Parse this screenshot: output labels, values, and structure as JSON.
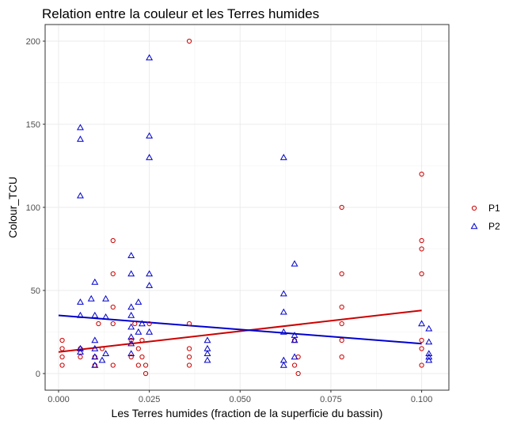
{
  "chart_data": {
    "type": "scatter",
    "title": "Relation entre la couleur et les Terres humides",
    "xlabel": "Les Terres humides (fraction de la superficie du bassin)",
    "ylabel": "Colour_TCU",
    "xlim": [
      -0.0037,
      0.1075
    ],
    "ylim": [
      -10,
      210
    ],
    "x_ticks": [
      0.0,
      0.025,
      0.05,
      0.075,
      0.1
    ],
    "x_tick_labels": [
      "0.000",
      "0.025",
      "0.050",
      "0.075",
      "0.100"
    ],
    "y_ticks": [
      0,
      50,
      100,
      150,
      200
    ],
    "y_tick_labels": [
      "0",
      "50",
      "100",
      "150",
      "200"
    ],
    "grid": true,
    "legend_position": "right",
    "series": [
      {
        "name": "P1",
        "marker": "circle",
        "color": "#cc0000",
        "points": [
          [
            0.001,
            5
          ],
          [
            0.001,
            10
          ],
          [
            0.001,
            15
          ],
          [
            0.001,
            20
          ],
          [
            0.006,
            10
          ],
          [
            0.006,
            15
          ],
          [
            0.01,
            5
          ],
          [
            0.01,
            10
          ],
          [
            0.011,
            30
          ],
          [
            0.012,
            15
          ],
          [
            0.015,
            5
          ],
          [
            0.015,
            30
          ],
          [
            0.015,
            40
          ],
          [
            0.015,
            60
          ],
          [
            0.015,
            80
          ],
          [
            0.02,
            10
          ],
          [
            0.02,
            20
          ],
          [
            0.021,
            30
          ],
          [
            0.022,
            5
          ],
          [
            0.022,
            15
          ],
          [
            0.023,
            10
          ],
          [
            0.023,
            20
          ],
          [
            0.024,
            0
          ],
          [
            0.024,
            5
          ],
          [
            0.025,
            30
          ],
          [
            0.036,
            5
          ],
          [
            0.036,
            10
          ],
          [
            0.036,
            15
          ],
          [
            0.036,
            30
          ],
          [
            0.036,
            200
          ],
          [
            0.065,
            5
          ],
          [
            0.066,
            10
          ],
          [
            0.066,
            0
          ],
          [
            0.065,
            20
          ],
          [
            0.078,
            10
          ],
          [
            0.078,
            20
          ],
          [
            0.078,
            30
          ],
          [
            0.078,
            40
          ],
          [
            0.078,
            60
          ],
          [
            0.078,
            100
          ],
          [
            0.1,
            5
          ],
          [
            0.1,
            15
          ],
          [
            0.1,
            20
          ],
          [
            0.1,
            60
          ],
          [
            0.1,
            75
          ],
          [
            0.1,
            80
          ],
          [
            0.1,
            120
          ]
        ],
        "trend": [
          [
            0.0,
            13
          ],
          [
            0.1,
            38
          ]
        ]
      },
      {
        "name": "P2",
        "marker": "triangle",
        "color": "#0000cc",
        "points": [
          [
            0.006,
            13
          ],
          [
            0.006,
            15
          ],
          [
            0.006,
            35
          ],
          [
            0.006,
            43
          ],
          [
            0.006,
            107
          ],
          [
            0.006,
            141
          ],
          [
            0.006,
            148
          ],
          [
            0.009,
            45
          ],
          [
            0.01,
            5
          ],
          [
            0.01,
            10
          ],
          [
            0.01,
            15
          ],
          [
            0.01,
            20
          ],
          [
            0.01,
            35
          ],
          [
            0.01,
            55
          ],
          [
            0.012,
            8
          ],
          [
            0.013,
            12
          ],
          [
            0.013,
            34
          ],
          [
            0.013,
            45
          ],
          [
            0.02,
            12
          ],
          [
            0.02,
            18
          ],
          [
            0.02,
            22
          ],
          [
            0.02,
            28
          ],
          [
            0.02,
            35
          ],
          [
            0.02,
            40
          ],
          [
            0.02,
            60
          ],
          [
            0.02,
            71
          ],
          [
            0.022,
            25
          ],
          [
            0.022,
            43
          ],
          [
            0.023,
            30
          ],
          [
            0.025,
            25
          ],
          [
            0.025,
            53
          ],
          [
            0.025,
            60
          ],
          [
            0.025,
            130
          ],
          [
            0.025,
            143
          ],
          [
            0.025,
            190
          ],
          [
            0.041,
            8
          ],
          [
            0.041,
            12
          ],
          [
            0.041,
            15
          ],
          [
            0.041,
            20
          ],
          [
            0.062,
            5
          ],
          [
            0.062,
            8
          ],
          [
            0.062,
            25
          ],
          [
            0.062,
            37
          ],
          [
            0.062,
            48
          ],
          [
            0.062,
            130
          ],
          [
            0.065,
            10
          ],
          [
            0.065,
            20
          ],
          [
            0.065,
            23
          ],
          [
            0.065,
            66
          ],
          [
            0.1,
            30
          ],
          [
            0.102,
            8
          ],
          [
            0.102,
            10
          ],
          [
            0.102,
            12
          ],
          [
            0.102,
            19
          ],
          [
            0.102,
            27
          ]
        ],
        "trend": [
          [
            0.0,
            35
          ],
          [
            0.1,
            18
          ]
        ]
      }
    ]
  }
}
